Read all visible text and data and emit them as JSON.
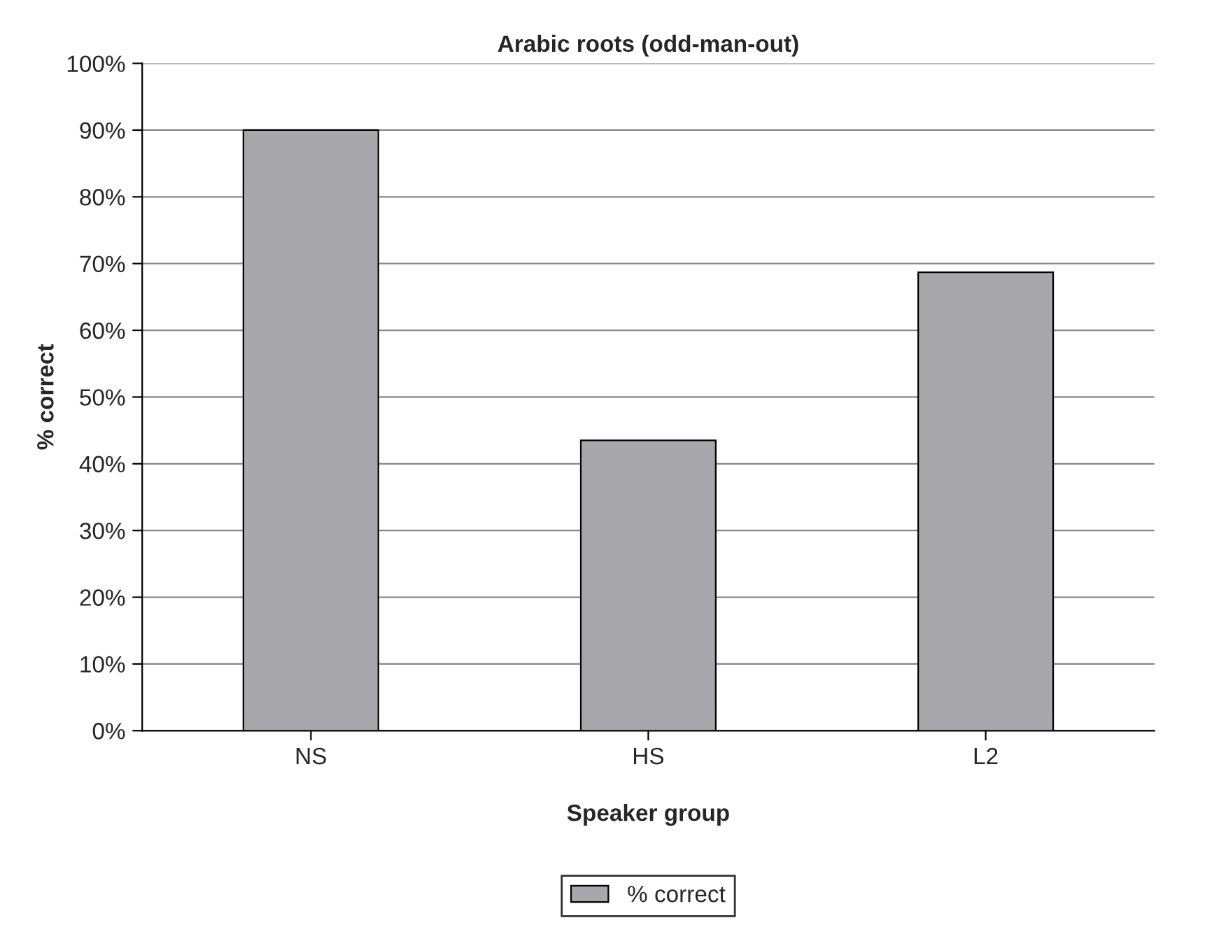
{
  "chart_data": {
    "type": "bar",
    "title": "Arabic roots (odd-man-out)",
    "xlabel": "Speaker group",
    "ylabel": "% correct",
    "categories": [
      "NS",
      "HS",
      "L2"
    ],
    "series": [
      {
        "name": "% correct",
        "color": "#a7a7ac",
        "values": [
          90,
          43.5,
          68.7
        ]
      }
    ],
    "ylim": [
      0,
      100
    ],
    "yticks": [
      {
        "value": 0,
        "label": "0%"
      },
      {
        "value": 10,
        "label": "10%"
      },
      {
        "value": 20,
        "label": "20%"
      },
      {
        "value": 30,
        "label": "30%"
      },
      {
        "value": 40,
        "label": "40%"
      },
      {
        "value": 50,
        "label": "50%"
      },
      {
        "value": 60,
        "label": "60%"
      },
      {
        "value": 70,
        "label": "70%"
      },
      {
        "value": 80,
        "label": "80%"
      },
      {
        "value": 90,
        "label": "90%"
      },
      {
        "value": 100,
        "label": "100%"
      }
    ],
    "grid": "y",
    "legend": "bottom"
  }
}
